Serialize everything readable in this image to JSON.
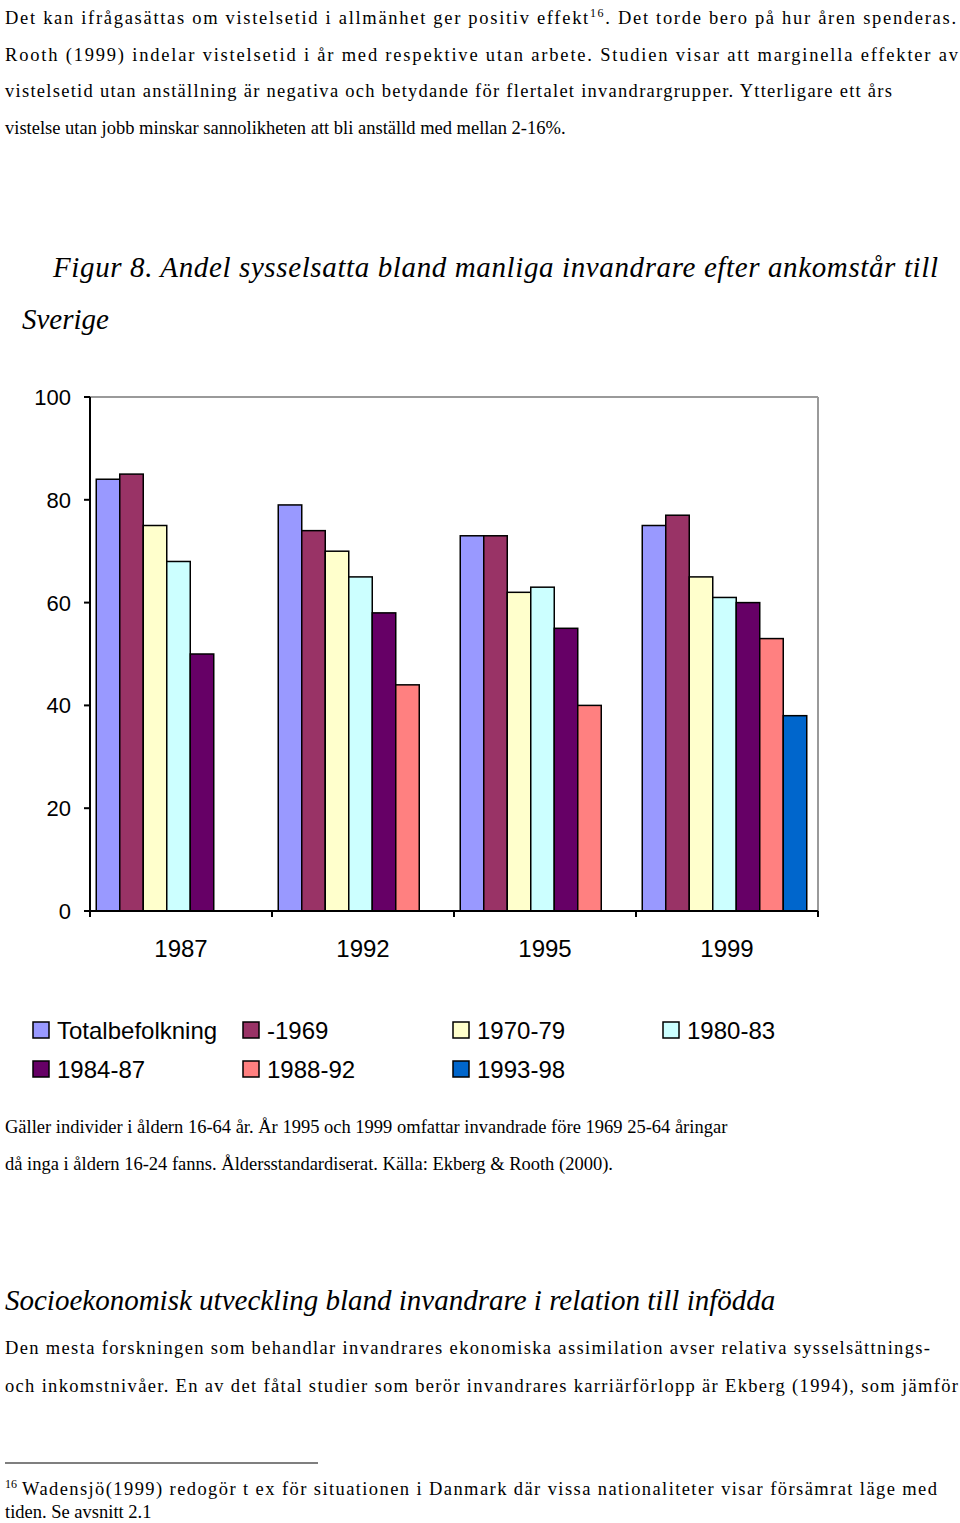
{
  "intro": {
    "line1": "Det kan ifrågasättas om vistelsetid i allmänhet ger positiv effekt",
    "line1_ref": "16",
    "line1_end": ". Det torde bero på hur åren spenderas.",
    "lines": [
      "Rooth (1999) indelar vistelsetid i år med respektive utan arbete. Studien visar att marginella effekter av",
      "vistelsetid utan anställning är negativa och betydande för flertalet invandrargrupper. Ytterligare ett års",
      "vistelse utan jobb minskar sannolikheten att bli anställd med mellan 2-16%."
    ]
  },
  "figure": {
    "caption": [
      "Figur 8. Andel sysselsatta bland manliga invandrare efter ankomstår till",
      "Sverige"
    ],
    "notes": [
      "Gäller individer i åldern 16-64 år. År 1995 och 1999 omfattar invandrade före 1969 25-64 åringar",
      "då inga i åldern 16-24 fanns. Åldersstandardiserat. Källa: Ekberg & Rooth (2000)."
    ]
  },
  "chart_data": {
    "type": "bar",
    "categories": [
      "1987",
      "1992",
      "1995",
      "1999"
    ],
    "series": [
      {
        "name": "Totalbefolkning",
        "color": "#9999ff",
        "values": [
          84,
          79,
          73,
          75
        ]
      },
      {
        "name": "-1969",
        "color": "#993366",
        "values": [
          85,
          74,
          73,
          77
        ]
      },
      {
        "name": "1970-79",
        "color": "#ffffcc",
        "values": [
          75,
          70,
          62,
          65
        ]
      },
      {
        "name": "1980-83",
        "color": "#ccffff",
        "values": [
          68,
          65,
          63,
          61
        ]
      },
      {
        "name": "1984-87",
        "color": "#660066",
        "values": [
          50,
          58,
          55,
          60
        ]
      },
      {
        "name": "1988-92",
        "color": "#ff8080",
        "values": [
          null,
          44,
          40,
          53
        ]
      },
      {
        "name": "1993-98",
        "color": "#0066cc",
        "values": [
          null,
          null,
          null,
          38
        ]
      }
    ],
    "ylim": [
      0,
      100
    ],
    "yticks": [
      0,
      20,
      40,
      60,
      80,
      100
    ],
    "grid": false,
    "legend": "bottom"
  },
  "section": {
    "heading": "Socioekonomisk utveckling bland invandrare i relation till infödda",
    "lines": [
      "Den mesta forskningen som behandlar invandrares ekonomiska assimilation avser relativa sysselsättnings-",
      "och inkomstnivåer. En av det fåtal studier som berör invandrares karriärförlopp är Ekberg (1994), som jämför"
    ]
  },
  "footnote": {
    "marker": "16",
    "lines": [
      "Wadensjö(1999) redogör t ex  för situationen i Danmark där vissa nationaliteter visar försämrat läge med",
      "tiden. Se avsnitt 2.1"
    ]
  }
}
